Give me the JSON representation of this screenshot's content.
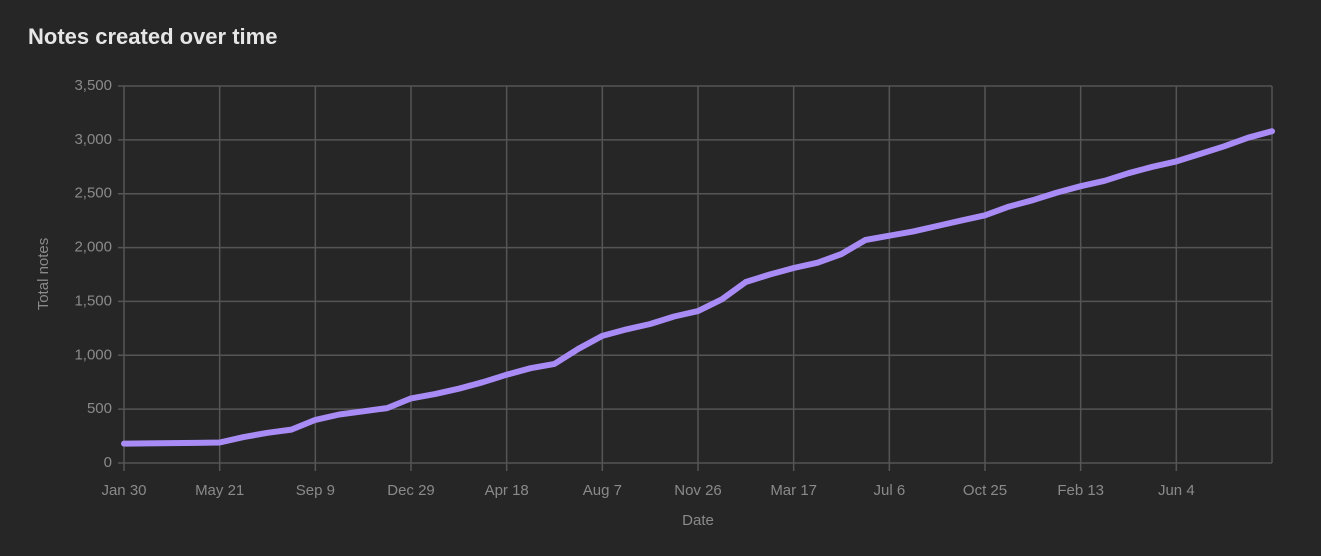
{
  "chart_data": {
    "type": "line",
    "title": "Notes created over time",
    "x_label": "Date",
    "y_label": "Total notes",
    "categories": [
      "Jan 30",
      null,
      null,
      null,
      "May 21",
      null,
      null,
      null,
      "Sep 9",
      null,
      null,
      null,
      "Dec 29",
      null,
      null,
      null,
      "Apr 18",
      null,
      null,
      null,
      "Aug 7",
      null,
      null,
      null,
      "Nov 26",
      null,
      null,
      null,
      "Mar 17",
      null,
      null,
      null,
      "Jul 6",
      null,
      null,
      null,
      "Oct 25",
      null,
      null,
      null,
      "Feb 13",
      null,
      null,
      null,
      "Jun 4",
      null,
      null,
      null,
      null
    ],
    "values": [
      180,
      182,
      185,
      187,
      190,
      240,
      280,
      310,
      400,
      450,
      480,
      510,
      600,
      640,
      690,
      750,
      820,
      880,
      920,
      1060,
      1180,
      1240,
      1290,
      1360,
      1410,
      1520,
      1680,
      1750,
      1810,
      1860,
      1940,
      2070,
      2110,
      2150,
      2200,
      2250,
      2300,
      2380,
      2440,
      2510,
      2570,
      2620,
      2690,
      2750,
      2800,
      2870,
      2940,
      3020,
      3080
    ],
    "color": "#a98bf5",
    "ylim": [
      0,
      3500
    ],
    "yticks": [
      0,
      500,
      {
        "value": 1000,
        "label": "1,000"
      },
      {
        "value": 1500,
        "label": "1,500"
      },
      {
        "value": 2000,
        "label": "2,000"
      },
      {
        "value": 2500,
        "label": "2,500"
      },
      {
        "value": 3000,
        "label": "3,000"
      },
      {
        "value": 3500,
        "label": "3,500"
      }
    ],
    "grid": true
  }
}
